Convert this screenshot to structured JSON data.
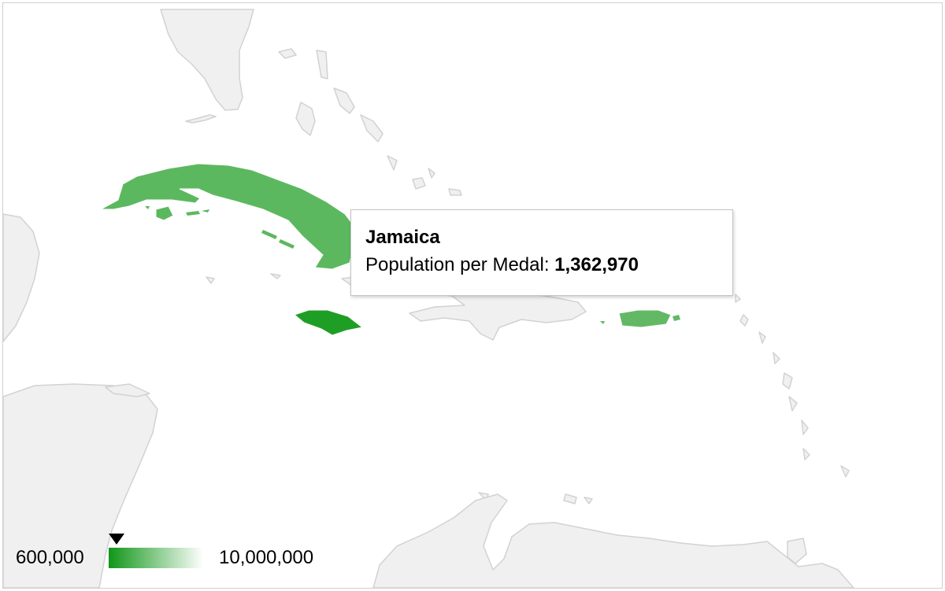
{
  "tooltip": {
    "title": "Jamaica",
    "label": "Population per Medal:",
    "value": "1,362,970"
  },
  "legend": {
    "min_label": "600,000",
    "max_label": "10,000,000",
    "min_value": 600000,
    "max_value": 10000000,
    "marker_value": 1362970,
    "color_low": "#109618",
    "color_high": "#ffffff"
  },
  "colors": {
    "land": "#f0f0f0",
    "border": "#d2d2d2",
    "cuba": "#5cb85f",
    "jamaica": "#1f9e26",
    "puerto_rico": "#63b866"
  }
}
